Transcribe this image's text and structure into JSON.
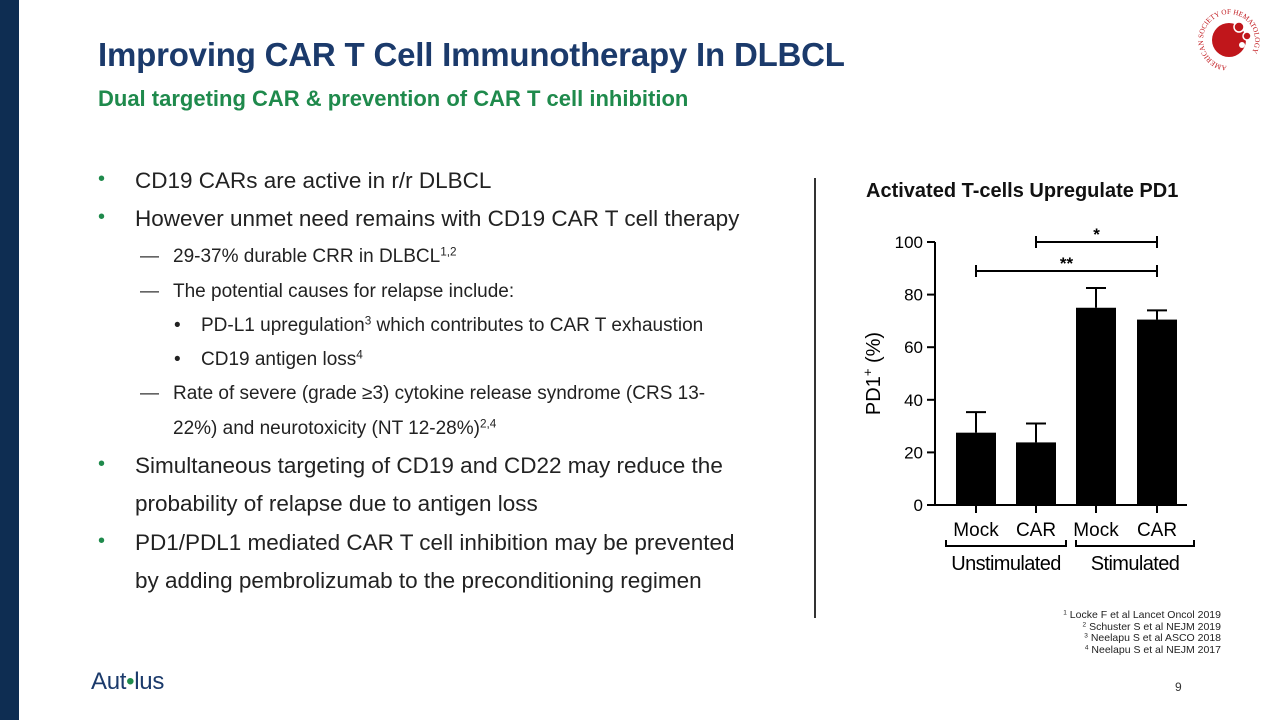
{
  "slide": {
    "title": "Improving CAR T Cell Immunotherapy In DLBCL",
    "subtitle": "Dual targeting CAR & prevention of CAR T cell inhibition",
    "page_number": "9",
    "colors": {
      "navy": "#1b3a6b",
      "green": "#1f8a4c",
      "left_bar": "#0e2d52",
      "ash_red": "#c0161b"
    }
  },
  "bullets": {
    "b1": "CD19 CARs are active in r/r DLBCL",
    "b2": "However unmet need remains with CD19 CAR T cell therapy",
    "b2_1": {
      "text": "29-37% durable CRR in DLBCL",
      "sup": "1,2"
    },
    "b2_2": "The potential causes for relapse include:",
    "b2_2_1": {
      "pre": "PD-L1 upregulation",
      "sup": "3",
      "post": " which contributes to CAR T exhaustion"
    },
    "b2_2_2": {
      "text": "CD19 antigen loss",
      "sup": "4"
    },
    "b2_3_line1": "Rate of severe (grade ≥3)  cytokine release syndrome (CRS 13-",
    "b2_3_line2": {
      "text": "22%) and neurotoxicity (NT 12-28%)",
      "sup": "2,4"
    },
    "b3_line1": "Simultaneous targeting of CD19 and CD22 may reduce the",
    "b3_line2": "probability of relapse due to antigen loss",
    "b4_line1": "PD1/PDL1 mediated CAR T cell inhibition may be prevented",
    "b4_line2": "by adding pembrolizumab to the preconditioning regimen",
    "markers": {
      "level1": "•",
      "level2": "—",
      "level3": "•"
    }
  },
  "chart_data": {
    "type": "bar",
    "title": "Activated T-cells Upregulate PD1",
    "ylabel": "PD1",
    "ylabel_sup": "+",
    "ylabel_suffix": " (%)",
    "categories": [
      "Mock",
      "CAR",
      "Mock",
      "CAR"
    ],
    "groups": [
      {
        "label": "Unstimulated",
        "categories": [
          "Mock",
          "CAR"
        ]
      },
      {
        "label": "Stimulated",
        "categories": [
          "Mock",
          "CAR"
        ]
      }
    ],
    "values": [
      27.5,
      23.8,
      75,
      70.5
    ],
    "error_upper": [
      35.3,
      31,
      82.5,
      74
    ],
    "ylim": [
      0,
      100
    ],
    "yticks": [
      0,
      20,
      40,
      60,
      80,
      100
    ],
    "bar_color": "#000000",
    "significance": [
      {
        "from": 1,
        "to": 3,
        "label": "*"
      },
      {
        "from": 0,
        "to": 3,
        "label": "**"
      }
    ]
  },
  "references": [
    {
      "sup": "1",
      "text": " Locke F et al Lancet Oncol 2019"
    },
    {
      "sup": "2",
      "text": " Schuster S et al NEJM 2019"
    },
    {
      "sup": "3",
      "text": " Neelapu S et al ASCO 2018"
    },
    {
      "sup": "4",
      "text": " Neelapu S et al NEJM 2017"
    }
  ],
  "logos": {
    "autolus": {
      "pre": "Aut",
      "mark": "•",
      "post": "lus"
    },
    "ash_ring_text": "AMERICAN SOCIETY OF HEMATOLOGY"
  }
}
